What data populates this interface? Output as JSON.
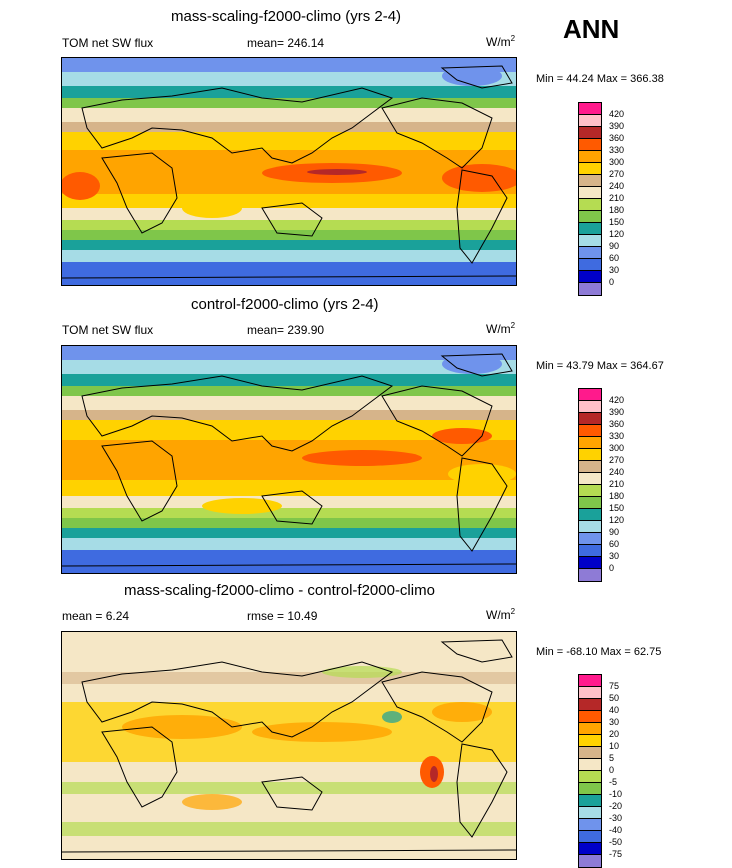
{
  "figure": {
    "season": "ANN",
    "units_base": "W/m",
    "units_exp": "2"
  },
  "colors": {
    "abs_scale": [
      "#8e7bd6",
      "#0000c8",
      "#3f6be0",
      "#6f93ec",
      "#a6dce6",
      "#1aa19a",
      "#7fc64a",
      "#b5dc52",
      "#f5e7c6",
      "#d6b48a",
      "#ffd200",
      "#ffa400",
      "#ff5a00",
      "#b52828",
      "#ffc0c8",
      "#ff1a8c"
    ],
    "diff_scale": [
      "#8e7bd6",
      "#0000c8",
      "#3f6be0",
      "#6f93ec",
      "#a6dce6",
      "#1aa19a",
      "#7fc64a",
      "#b5dc52",
      "#f5e7c6",
      "#d6b48a",
      "#ffd200",
      "#ffa400",
      "#ff5a00",
      "#b52828",
      "#ffc0c8",
      "#ff1a8c"
    ],
    "land": "#000000"
  },
  "panels": [
    {
      "title": "mass-scaling-f2000-climo (yrs 2-4)",
      "left_label": "TOM net SW flux",
      "center_label": "mean= 246.14",
      "minmax": "Min =  44.24 Max = 366.38",
      "ticks": [
        "420",
        "390",
        "360",
        "330",
        "300",
        "270",
        "240",
        "210",
        "180",
        "150",
        "120",
        "90",
        "60",
        "30",
        "0"
      ]
    },
    {
      "title": "control-f2000-climo (yrs 2-4)",
      "left_label": "TOM net SW flux",
      "center_label": "mean= 239.90",
      "minmax": "Min =  43.79 Max = 364.67",
      "ticks": [
        "420",
        "390",
        "360",
        "330",
        "300",
        "270",
        "240",
        "210",
        "180",
        "150",
        "120",
        "90",
        "60",
        "30",
        "0"
      ]
    },
    {
      "title": "mass-scaling-f2000-climo - control-f2000-climo",
      "left_label": "mean =   6.24",
      "center_label": "rmse =  10.49",
      "minmax": "Min = -68.10 Max =  62.75",
      "ticks": [
        "75",
        "50",
        "40",
        "30",
        "20",
        "10",
        "5",
        "0",
        "-5",
        "-10",
        "-20",
        "-30",
        "-40",
        "-50",
        "-75"
      ]
    }
  ],
  "chart_data": [
    {
      "type": "heatmap",
      "title": "mass-scaling-f2000-climo (yrs 2-4)",
      "variable": "TOM net SW flux",
      "units": "W/m2",
      "mean": 246.14,
      "min": 44.24,
      "max": 366.38,
      "contour_levels": [
        0,
        30,
        60,
        90,
        120,
        150,
        180,
        210,
        240,
        270,
        300,
        330,
        360,
        390,
        420
      ]
    },
    {
      "type": "heatmap",
      "title": "control-f2000-climo (yrs 2-4)",
      "variable": "TOM net SW flux",
      "units": "W/m2",
      "mean": 239.9,
      "min": 43.79,
      "max": 364.67,
      "contour_levels": [
        0,
        30,
        60,
        90,
        120,
        150,
        180,
        210,
        240,
        270,
        300,
        330,
        360,
        390,
        420
      ]
    },
    {
      "type": "heatmap",
      "title": "mass-scaling-f2000-climo - control-f2000-climo",
      "units": "W/m2",
      "mean": 6.24,
      "rmse": 10.49,
      "min": -68.1,
      "max": 62.75,
      "contour_levels": [
        -75,
        -50,
        -40,
        -30,
        -20,
        -10,
        -5,
        0,
        5,
        10,
        20,
        30,
        40,
        50,
        75
      ]
    }
  ]
}
